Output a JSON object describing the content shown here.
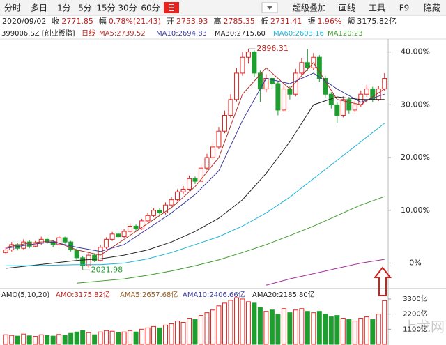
{
  "toolbar": {
    "buttons": [
      "分时",
      "多日",
      "1分",
      "5分",
      "15分",
      "30分",
      "60分",
      "日",
      "超级叠加",
      "画线",
      "工具",
      "F9",
      "隐藏"
    ],
    "selected": 7
  },
  "info": {
    "date": "2020/09/02",
    "items": [
      {
        "label": "收",
        "value": "2771.85"
      },
      {
        "label": "幅",
        "value": "0.78%(21.43)"
      },
      {
        "label": "开",
        "value": "2753.93"
      },
      {
        "label": "高",
        "value": "2785.35"
      },
      {
        "label": "低",
        "value": "2731.41"
      },
      {
        "label": "振",
        "value": "1.96%"
      },
      {
        "label": "额",
        "value": "3175.82亿"
      }
    ]
  },
  "legend": {
    "symbol": "399006.SZ [创业板指]",
    "period": "日线"
  },
  "watermark": "上龙网",
  "chart_data": {
    "type": "candlestick",
    "ylim": [
      -4.3,
      42.2
    ],
    "yticks": [
      {
        "value": 40,
        "label": "40.00%"
      },
      {
        "value": 30,
        "label": "30.00%"
      },
      {
        "value": 20,
        "label": "20.00%"
      },
      {
        "value": 10,
        "label": "10.00%"
      },
      {
        "value": 0,
        "label": "0%"
      }
    ],
    "up_color": "#e8231f",
    "down_color": "#1e9e2e",
    "candles": [
      [
        2,
        3.0,
        1.6,
        2.5
      ],
      [
        2.5,
        4.0,
        2.2,
        3.5
      ],
      [
        3.5,
        3.8,
        2.4,
        2.8
      ],
      [
        2.8,
        4.5,
        2.6,
        4.0
      ],
      [
        4.0,
        4.3,
        2.8,
        3.2
      ],
      [
        3.2,
        4.2,
        3.0,
        3.8
      ],
      [
        3.8,
        5.0,
        3.5,
        4.5
      ],
      [
        4.5,
        4.9,
        3.6,
        4.0
      ],
      [
        4.0,
        4.4,
        3.0,
        3.5
      ],
      [
        3.5,
        5.2,
        3.3,
        4.8
      ],
      [
        4.8,
        5.0,
        3.7,
        4.0
      ],
      [
        4.0,
        4.2,
        2.2,
        2.5
      ],
      [
        2.5,
        2.8,
        0.6,
        1.0
      ],
      [
        1.0,
        1.3,
        -1.3,
        -0.5
      ],
      [
        -0.5,
        1.9,
        -0.8,
        1.5
      ],
      [
        1.5,
        1.8,
        0.2,
        0.5
      ],
      [
        0.5,
        3.4,
        0.3,
        3.0
      ],
      [
        3.0,
        4.9,
        2.7,
        4.5
      ],
      [
        4.5,
        5.9,
        4.2,
        5.5
      ],
      [
        5.5,
        5.8,
        4.6,
        5.0
      ],
      [
        5.0,
        6.4,
        4.8,
        6.0
      ],
      [
        6.0,
        7.5,
        5.7,
        7.0
      ],
      [
        7.0,
        7.3,
        6.1,
        6.5
      ],
      [
        6.5,
        8.4,
        6.3,
        8.0
      ],
      [
        8.0,
        9.5,
        7.7,
        9.0
      ],
      [
        9.0,
        10.5,
        8.7,
        10.0
      ],
      [
        10.0,
        10.4,
        9.1,
        9.5
      ],
      [
        9.5,
        11.5,
        9.2,
        11.0
      ],
      [
        11.0,
        12.6,
        10.7,
        12.0
      ],
      [
        12.0,
        14.0,
        11.7,
        13.5
      ],
      [
        13.5,
        14.6,
        13.0,
        14.0
      ],
      [
        14.0,
        16.6,
        13.7,
        16.0
      ],
      [
        16.0,
        16.4,
        15.0,
        15.5
      ],
      [
        15.5,
        18.6,
        15.2,
        18.0
      ],
      [
        18.0,
        20.7,
        17.6,
        20.0
      ],
      [
        20.0,
        22.8,
        19.6,
        22.0
      ],
      [
        22.0,
        25.8,
        21.6,
        25.0
      ],
      [
        25.0,
        28.9,
        24.6,
        28.0
      ],
      [
        28.0,
        32.0,
        27.5,
        31.0
      ],
      [
        31.0,
        37.0,
        30.6,
        36.0
      ],
      [
        36.0,
        40.0,
        35.5,
        39.0
      ],
      [
        39.0,
        40.6,
        37.8,
        40.0
      ],
      [
        40.0,
        40.3,
        35.2,
        36.0
      ],
      [
        36.0,
        36.5,
        30.5,
        33.0
      ],
      [
        33.0,
        35.8,
        32.4,
        35.0
      ],
      [
        35.0,
        35.5,
        33.0,
        34.0
      ],
      [
        34.0,
        34.4,
        28.0,
        29.0
      ],
      [
        29.0,
        33.8,
        28.6,
        33.0
      ],
      [
        33.0,
        33.5,
        31.0,
        32.0
      ],
      [
        32.0,
        36.8,
        31.6,
        36.0
      ],
      [
        36.0,
        38.9,
        35.6,
        38.0
      ],
      [
        38.0,
        40.5,
        36.4,
        37.0
      ],
      [
        37.0,
        39.8,
        36.6,
        39.0
      ],
      [
        39.0,
        39.4,
        34.3,
        35.0
      ],
      [
        35.0,
        35.5,
        31.4,
        32.0
      ],
      [
        32.0,
        32.4,
        29.3,
        30.0
      ],
      [
        30.0,
        30.5,
        26.5,
        28.0
      ],
      [
        28.0,
        31.6,
        27.6,
        31.0
      ],
      [
        31.0,
        31.5,
        28.3,
        29.0
      ],
      [
        29.0,
        30.7,
        28.6,
        30.0
      ],
      [
        30.0,
        32.7,
        29.6,
        32.0
      ],
      [
        32.0,
        33.8,
        31.5,
        33.0
      ],
      [
        33.0,
        33.4,
        30.5,
        31.0
      ],
      [
        31.0,
        33.6,
        30.7,
        33.0
      ],
      [
        33.0,
        36.0,
        32.6,
        35.0
      ]
    ],
    "line_x": [
      0,
      4,
      8,
      12,
      16,
      20,
      24,
      28,
      32,
      36,
      40,
      44,
      48,
      52,
      56,
      60,
      64
    ],
    "ma_series": [
      {
        "name": "MA5:2739.52",
        "color": "#b0302a",
        "values": [
          3,
          3.8,
          4.2,
          2.5,
          1.5,
          4.5,
          7.5,
          10.5,
          14.5,
          20,
          32,
          37,
          33,
          38,
          31,
          30,
          33
        ]
      },
      {
        "name": "MA10:2694.83",
        "color": "#3b3b9e",
        "values": [
          2.8,
          3.5,
          4,
          3,
          2.2,
          3.5,
          6.5,
          9.5,
          13,
          17.5,
          27,
          35,
          34,
          36,
          33,
          30.5,
          32
        ]
      },
      {
        "name": "MA30:2715.60",
        "color": "#222222",
        "values": [
          -1,
          -0.5,
          0,
          0.5,
          0.8,
          1.5,
          2.5,
          4,
          6,
          8.5,
          12,
          17,
          23,
          30,
          31.5,
          31,
          31
        ]
      },
      {
        "name": "MA60:2603.16",
        "color": "#1fb4d8",
        "values": [
          -0.5,
          -0.5,
          -0.4,
          -0.3,
          -0.3,
          0,
          0.8,
          2,
          3.5,
          5,
          7,
          9.5,
          12.5,
          16,
          19.5,
          23,
          26.5
        ]
      },
      {
        "name": "MA120:23",
        "color": "#3f9a2c",
        "values": [
          null,
          null,
          null,
          -3.8,
          -3.4,
          -3,
          -2.3,
          -1.5,
          -0.5,
          0.6,
          2,
          3.5,
          5.2,
          7,
          9,
          11,
          12.6
        ]
      },
      {
        "color": "#a0309a",
        "values": [
          null,
          null,
          null,
          null,
          null,
          null,
          null,
          null,
          null,
          null,
          null,
          -4.2,
          -3,
          -2,
          -1,
          0,
          0.7
        ]
      }
    ],
    "annotations": {
      "high": "2896.31",
      "low": "2021.98"
    }
  },
  "volume": {
    "type": "bar",
    "header": [
      {
        "text": "AMO(5,10,20)",
        "color": "#222222"
      },
      {
        "text": "AMO:3175.82亿",
        "color": "#c0201c"
      },
      {
        "text": "AMA5:2657.68亿",
        "color": "#9a5a20"
      },
      {
        "text": "AMA10:2406.66亿",
        "color": "#3b3b9e"
      },
      {
        "text": "AMA20:2185.80亿",
        "color": "#222222"
      }
    ],
    "ylim": [
      0,
      3450
    ],
    "yticks": [
      {
        "value": 3300,
        "label": "3300亿"
      },
      {
        "value": 2200,
        "label": "2200亿"
      },
      {
        "value": 1100,
        "label": "1100亿"
      }
    ],
    "values": [
      700,
      650,
      600,
      750,
      620,
      580,
      700,
      640,
      600,
      720,
      650,
      800,
      900,
      1000,
      850,
      700,
      900,
      1000,
      950,
      850,
      900,
      1000,
      900,
      1100,
      1200,
      1300,
      1200,
      1400,
      1500,
      1700,
      1600,
      1900,
      1800,
      2100,
      2300,
      2500,
      2800,
      3000,
      3200,
      3400,
      3300,
      3100,
      3000,
      2700,
      2400,
      2500,
      2200,
      2600,
      2300,
      2500,
      2600,
      2400,
      2300,
      2400,
      2200,
      2000,
      2100,
      1900,
      1800,
      1700,
      1900,
      2000,
      1800,
      2200,
      3175.82
    ]
  }
}
